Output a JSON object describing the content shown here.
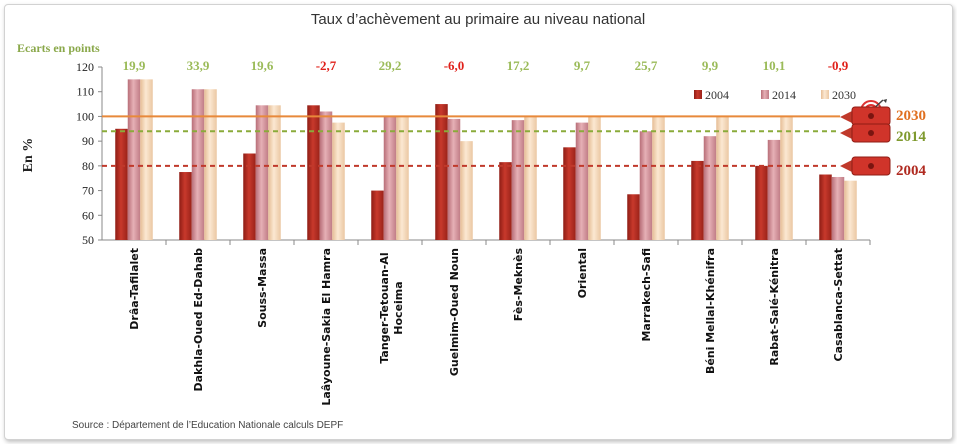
{
  "chart_data": {
    "type": "bar",
    "title": "Taux d’achèvement au primaire au niveau national",
    "gap_header": "Ecarts en points",
    "ylabel": "En %",
    "ylim": [
      50,
      120
    ],
    "yticks": [
      "50",
      "60",
      "70",
      "80",
      "90",
      "100",
      "110",
      "120"
    ],
    "categories": [
      "Drâa-Tafilalet",
      "Dakhla-Oued Ed-Dahab",
      "Souss-Massa",
      "Laâyoune-Sakia El Hamra",
      "Tanger-Tetouan-Al Hoceima",
      "Guelmim-Oued Noun",
      "Fès-Meknès",
      "Oriental",
      "Marrakech-Safi",
      "Béni Mellal-Khénifra",
      "Rabat-Salé-Kénitra",
      "Casablanca-Settat"
    ],
    "category_lines": [
      [
        "Drâa-Tafilalet"
      ],
      [
        "Dakhla-Oued Ed-Dahab"
      ],
      [
        "Souss-Massa"
      ],
      [
        "Laâyoune-Sakia El Hamra"
      ],
      [
        "Tanger-Tetouan-Al",
        "Hoceima"
      ],
      [
        "Guelmim-Oued Noun"
      ],
      [
        "Fès-Meknès"
      ],
      [
        "Oriental"
      ],
      [
        "Marrakech-Safi"
      ],
      [
        "Béni Mellal-Khénifra"
      ],
      [
        "Rabat-Salé-Kénitra"
      ],
      [
        "Casablanca-Settat"
      ]
    ],
    "gaps": [
      "19,9",
      "33,9",
      "19,6",
      "-2,7",
      "29,2",
      "-6,0",
      "17,2",
      "9,7",
      "25,7",
      "9,9",
      "10,1",
      "-0,9"
    ],
    "series": [
      {
        "name": "2004",
        "color": "#b52a20",
        "values": [
          95,
          77.5,
          85,
          104.5,
          70,
          105,
          81.5,
          87.5,
          68.5,
          82,
          80,
          76.5
        ]
      },
      {
        "name": "2014",
        "color": "#d4929b",
        "values": [
          115,
          111,
          104.5,
          102,
          100,
          99,
          98.5,
          97.5,
          94,
          92,
          90.5,
          75.5
        ]
      },
      {
        "name": "2030",
        "color": "#f3d6b8",
        "values": [
          115,
          111,
          104.5,
          97.5,
          100,
          90,
          100,
          100,
          100,
          100,
          100,
          74
        ]
      }
    ],
    "reference_lines": [
      {
        "label": "2030",
        "value": 100,
        "color": "#e8893a",
        "text_color": "#e07020"
      },
      {
        "label": "2014",
        "value": 94,
        "color": "#8aab3a",
        "text_color": "#7f9a2e"
      },
      {
        "label": "2004",
        "value": 80,
        "color": "#c0392b",
        "text_color": "#b02a20"
      }
    ],
    "positive_color": "#9bbb59",
    "negative_color": "#e0201a",
    "source": "Source : Département de l’Education Nationale calculs DEPF"
  }
}
